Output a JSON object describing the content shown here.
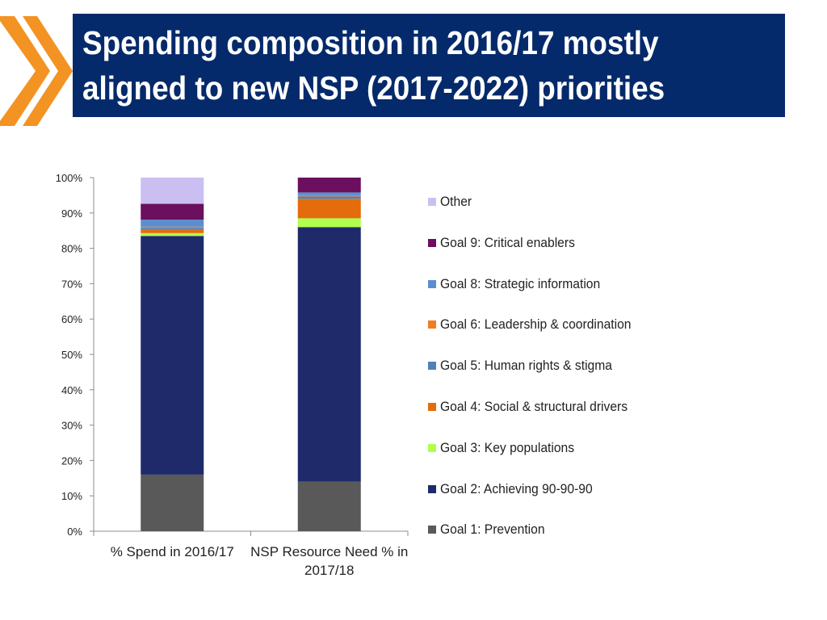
{
  "slide": {
    "title": "Spending composition in 2016/17 mostly\naligned to new NSP (2017-2022) priorities",
    "accent_color": "#f39323",
    "title_bg": "#052a6b"
  },
  "chart_data": {
    "type": "bar",
    "stacked": true,
    "percent": true,
    "title": "",
    "xlabel": "",
    "ylabel": "",
    "ylim": [
      0,
      100
    ],
    "yticks": [
      "0%",
      "10%",
      "20%",
      "30%",
      "40%",
      "50%",
      "60%",
      "70%",
      "80%",
      "90%",
      "100%"
    ],
    "categories": [
      {
        "line1": "% Spend in 2016/17",
        "line2": ""
      },
      {
        "line1": "NSP Resource Need % in",
        "line2": "2017/18"
      }
    ],
    "series": [
      {
        "name": "Goal 1: Prevention",
        "color": "#595959",
        "values": [
          16,
          14
        ]
      },
      {
        "name": "Goal 2: Achieving 90-90-90",
        "color": "#1f2a6b",
        "values": [
          67.5,
          72
        ]
      },
      {
        "name": "Goal 3: Key populations",
        "color": "#b0ff4f",
        "values": [
          0.8,
          2.5
        ]
      },
      {
        "name": "Goal 4: Social & structural drivers",
        "color": "#e46c0a",
        "values": [
          1,
          5.5
        ]
      },
      {
        "name": "Goal 5: Human rights & stigma",
        "color": "#4f81bd",
        "values": [
          0.5,
          0.7
        ]
      },
      {
        "name": "Goal 6: Leadership & coordination",
        "color": "#f07d1e",
        "values": [
          0.3,
          0.3
        ]
      },
      {
        "name": "Goal 8: Strategic information",
        "color": "#5a8fcf",
        "values": [
          2,
          0.8
        ]
      },
      {
        "name": "Goal 9: Critical enablers",
        "color": "#6b0f5e",
        "values": [
          4.5,
          4.2
        ]
      },
      {
        "name": "Other",
        "color": "#cbbff2",
        "values": [
          7.4,
          0
        ]
      }
    ],
    "legend_position": "right",
    "legend_order": [
      "Other",
      "Goal 9: Critical enablers",
      "Goal 8: Strategic information",
      "Goal 6: Leadership & coordination",
      "Goal 5: Human rights & stigma",
      "Goal 4: Social & structural drivers",
      "Goal 3: Key populations",
      "Goal 2: Achieving 90-90-90",
      "Goal 1: Prevention"
    ]
  }
}
